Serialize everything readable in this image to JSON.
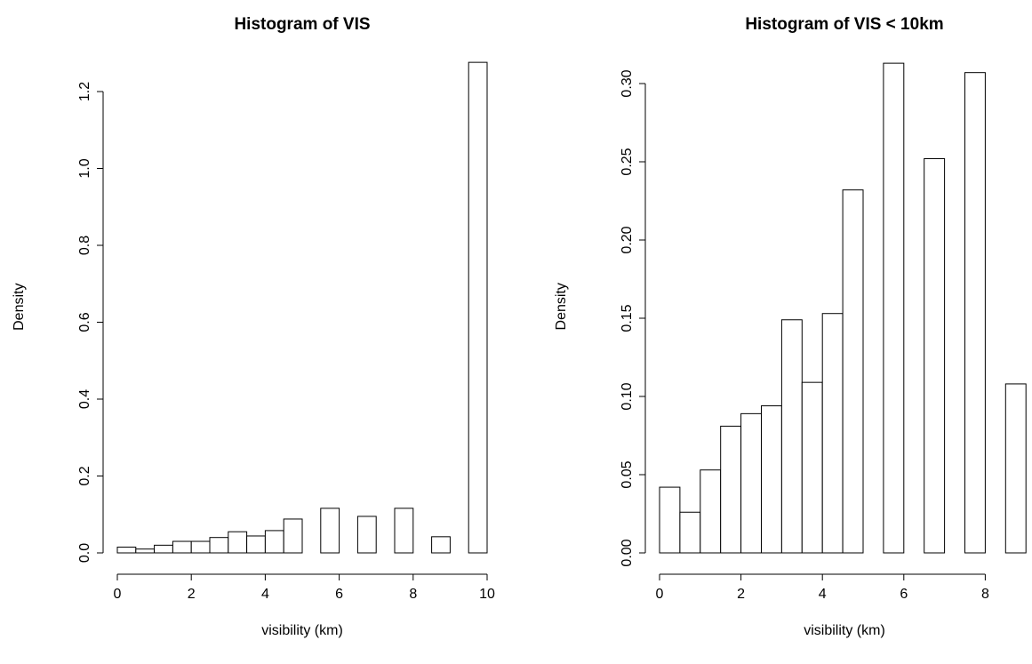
{
  "chart_data": [
    {
      "type": "histogram",
      "title": "Histogram of VIS",
      "x_label": "visibility (km)",
      "y_label": "Density",
      "bins": [
        0,
        0.5,
        1,
        1.5,
        2,
        2.5,
        3,
        3.5,
        4,
        4.5,
        5,
        5.5,
        6,
        6.5,
        7,
        7.5,
        8,
        8.5,
        9,
        9.5,
        10
      ],
      "values": [
        0.015,
        0.01,
        0.02,
        0.03,
        0.03,
        0.04,
        0.055,
        0.044,
        0.058,
        0.088,
        0,
        0.116,
        0,
        0.095,
        0,
        0.116,
        0,
        0.042,
        0,
        1.276
      ],
      "color": "#ffffff",
      "xlim": [
        0,
        10
      ],
      "xticks": [
        0,
        2,
        4,
        6,
        8,
        10
      ],
      "ylim": [
        0,
        1.28
      ],
      "yticks": [
        {
          "value": 0,
          "label": "0.0"
        },
        {
          "value": 0.2,
          "label": "0.2"
        },
        {
          "value": 0.4,
          "label": "0.4"
        },
        {
          "value": 0.6,
          "label": "0.6"
        },
        {
          "value": 0.8,
          "label": "0.8"
        },
        {
          "value": 1,
          "label": "1.0"
        },
        {
          "value": 1.2,
          "label": "1.2"
        }
      ]
    },
    {
      "type": "histogram",
      "title": "Histogram of VIS < 10km",
      "x_label": "visibility (km)",
      "y_label": "Density",
      "bins": [
        0,
        0.5,
        1,
        1.5,
        2,
        2.5,
        3,
        3.5,
        4,
        4.5,
        5,
        5.5,
        6,
        6.5,
        7,
        7.5,
        8,
        8.5,
        9
      ],
      "values": [
        0.042,
        0.026,
        0.053,
        0.081,
        0.089,
        0.094,
        0.149,
        0.109,
        0.153,
        0.232,
        0,
        0.313,
        0,
        0.252,
        0,
        0.307,
        0,
        0.108
      ],
      "color": "#ffffff",
      "xlim": [
        0,
        9
      ],
      "xticks": [
        0,
        2,
        4,
        6,
        8
      ],
      "ylim": [
        0,
        0.315
      ],
      "yticks": [
        {
          "value": 0,
          "label": "0.00"
        },
        {
          "value": 0.05,
          "label": "0.05"
        },
        {
          "value": 0.1,
          "label": "0.10"
        },
        {
          "value": 0.15,
          "label": "0.15"
        },
        {
          "value": 0.2,
          "label": "0.20"
        },
        {
          "value": 0.25,
          "label": "0.25"
        },
        {
          "value": 0.3,
          "label": "0.30"
        }
      ]
    }
  ]
}
